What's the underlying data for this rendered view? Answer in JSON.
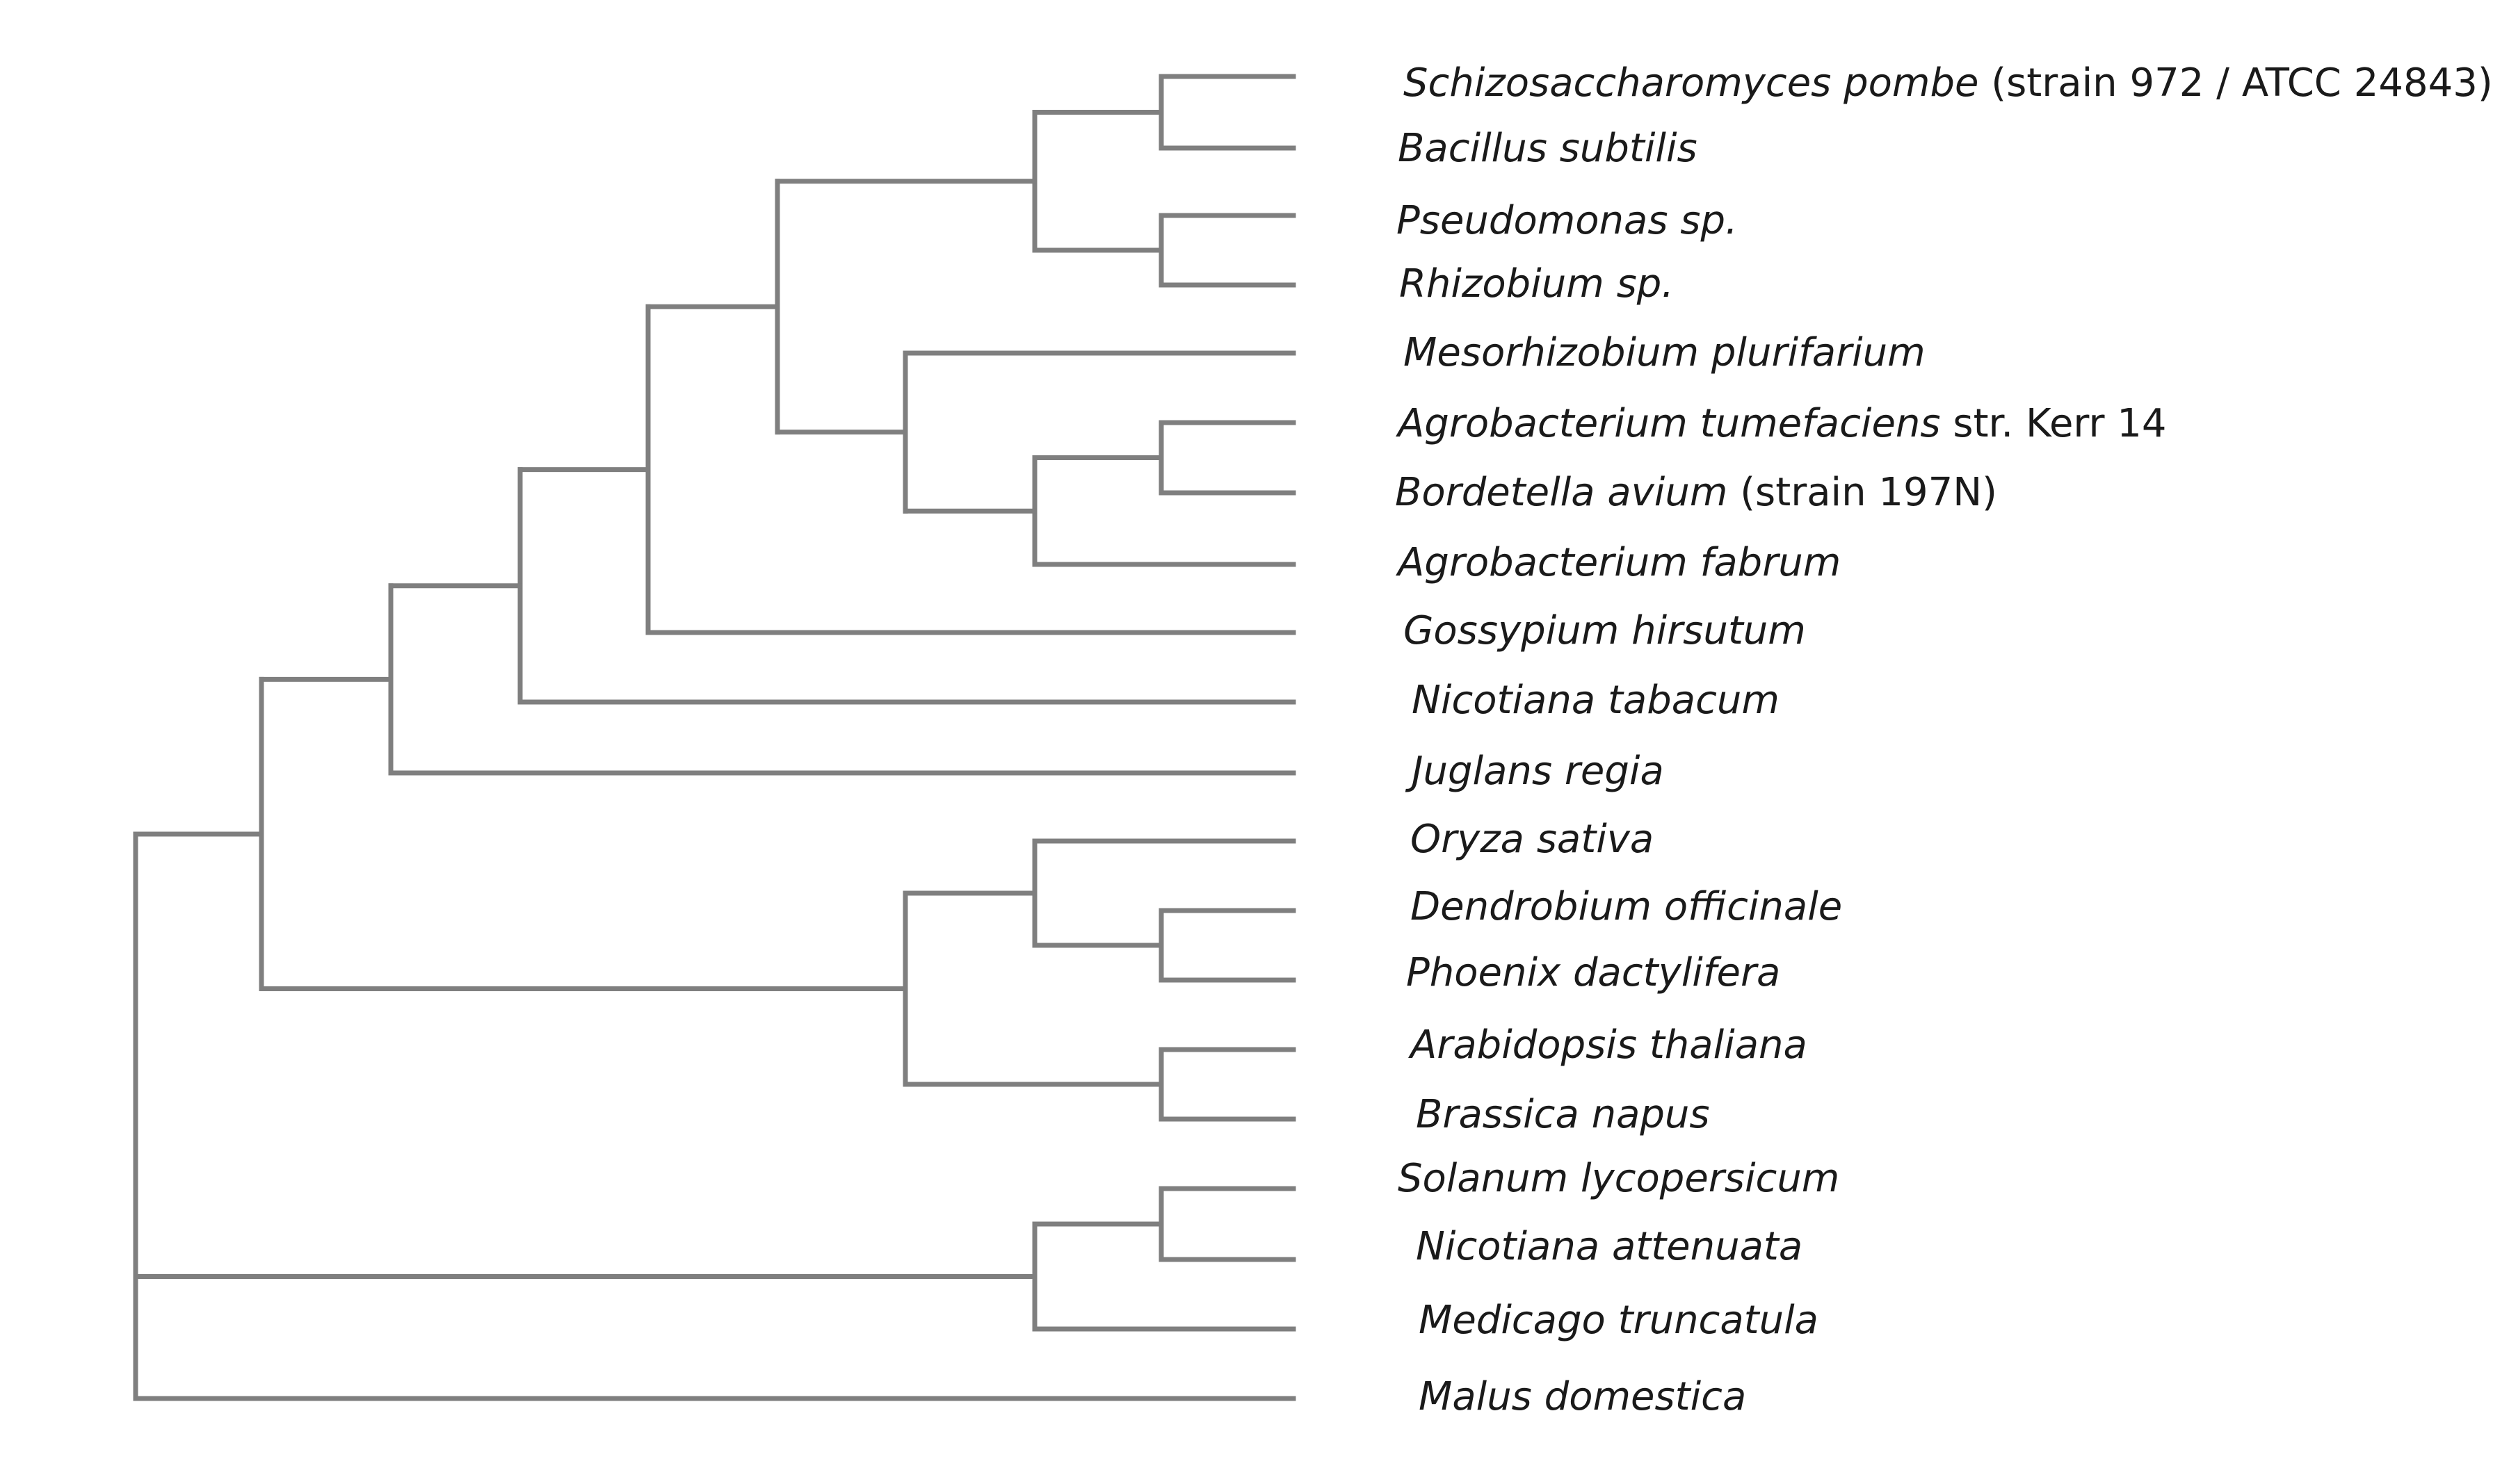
{
  "tree": {
    "line_color": "#7f7f7f",
    "leaves": [
      {
        "id": "L1",
        "name": "Schizosaccharomyces pombe",
        "extra": " (strain 972 / ATCC 24843)"
      },
      {
        "id": "L2",
        "name": "Bacillus subtilis",
        "extra": ""
      },
      {
        "id": "L3",
        "name": "Pseudomonas sp.",
        "extra": ""
      },
      {
        "id": "L4",
        "name": "Rhizobium sp.",
        "extra": ""
      },
      {
        "id": "L5",
        "name": "Mesorhizobium plurifarium",
        "extra": ""
      },
      {
        "id": "L6",
        "name": "Agrobacterium tumefaciens",
        "extra": " str. Kerr 14"
      },
      {
        "id": "L7",
        "name": "Bordetella avium",
        "extra": " (strain 197N)"
      },
      {
        "id": "L8",
        "name": "Agrobacterium fabrum",
        "extra": ""
      },
      {
        "id": "L9",
        "name": "Gossypium hirsutum",
        "extra": ""
      },
      {
        "id": "L10",
        "name": "Nicotiana tabacum",
        "extra": ""
      },
      {
        "id": "L11",
        "name": "Juglans regia",
        "extra": ""
      },
      {
        "id": "L12",
        "name": "Oryza sativa",
        "extra": ""
      },
      {
        "id": "L13",
        "name": "Dendrobium officinale",
        "extra": ""
      },
      {
        "id": "L14",
        "name": "Phoenix dactylifera",
        "extra": ""
      },
      {
        "id": "L15",
        "name": "Arabidopsis thaliana",
        "extra": ""
      },
      {
        "id": "L16",
        "name": "Brassica napus",
        "extra": ""
      },
      {
        "id": "L17",
        "name": "Solanum lycopersicum",
        "extra": ""
      },
      {
        "id": "L18",
        "name": "Nicotiana attenuata",
        "extra": ""
      },
      {
        "id": "L19",
        "name": "Medicago truncatula",
        "extra": ""
      },
      {
        "id": "L20",
        "name": "Malus domestica",
        "extra": ""
      }
    ],
    "clades": [
      {
        "id": "A1",
        "children": [
          "L1",
          "L2"
        ]
      },
      {
        "id": "A2",
        "children": [
          "L3",
          "L4"
        ]
      },
      {
        "id": "A3",
        "children": [
          "A1",
          "A2"
        ]
      },
      {
        "id": "B1",
        "children": [
          "L6",
          "L7"
        ]
      },
      {
        "id": "B2",
        "children": [
          "B1",
          "L8"
        ]
      },
      {
        "id": "B3",
        "children": [
          "L5",
          "B2"
        ]
      },
      {
        "id": "C1",
        "children": [
          "A3",
          "B3"
        ]
      },
      {
        "id": "C2",
        "children": [
          "C1",
          "L9"
        ]
      },
      {
        "id": "C3",
        "children": [
          "C2",
          "L10"
        ]
      },
      {
        "id": "C4",
        "children": [
          "C3",
          "L11"
        ]
      },
      {
        "id": "D1",
        "children": [
          "L13",
          "L14"
        ]
      },
      {
        "id": "D2",
        "children": [
          "L12",
          "D1"
        ]
      },
      {
        "id": "D3",
        "children": [
          "L15",
          "L16"
        ]
      },
      {
        "id": "D4",
        "children": [
          "D2",
          "D3"
        ]
      },
      {
        "id": "E1",
        "children": [
          "C4",
          "D4"
        ]
      },
      {
        "id": "F1",
        "children": [
          "L17",
          "L18"
        ]
      },
      {
        "id": "F2",
        "children": [
          "F1",
          "L19"
        ]
      },
      {
        "id": "ROOT",
        "children": [
          "E1",
          "F2",
          "L20"
        ]
      }
    ]
  }
}
